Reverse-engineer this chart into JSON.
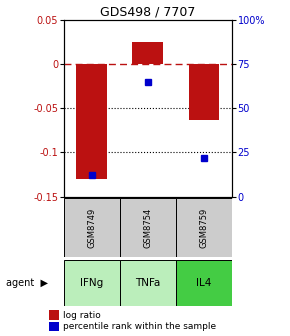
{
  "title": "GDS498 / 7707",
  "samples": [
    "GSM8749",
    "GSM8754",
    "GSM8759"
  ],
  "agents": [
    "IFNg",
    "TNFa",
    "IL4"
  ],
  "log_ratios": [
    -0.13,
    0.025,
    -0.063
  ],
  "percentiles": [
    0.12,
    0.65,
    0.22
  ],
  "bar_color": "#bb1111",
  "dot_color": "#0000cc",
  "sample_bg": "#cccccc",
  "agent_colors": [
    "#bbeebb",
    "#bbeebb",
    "#44cc44"
  ],
  "ylim_left": [
    -0.15,
    0.05
  ],
  "yticks_left": [
    0.05,
    0.0,
    -0.05,
    -0.1,
    -0.15
  ],
  "ytick_labels_left": [
    "0.05",
    "0",
    "-0.05",
    "-0.1",
    "-0.15"
  ],
  "yticks_right": [
    100,
    75,
    50,
    25,
    0
  ],
  "ytick_labels_right": [
    "100%",
    "75",
    "50",
    "25",
    "0"
  ],
  "hline_y": 0.0,
  "dotted_lines": [
    -0.05,
    -0.1
  ],
  "legend_red": "log ratio",
  "legend_blue": "percentile rank within the sample",
  "bar_width": 0.55
}
